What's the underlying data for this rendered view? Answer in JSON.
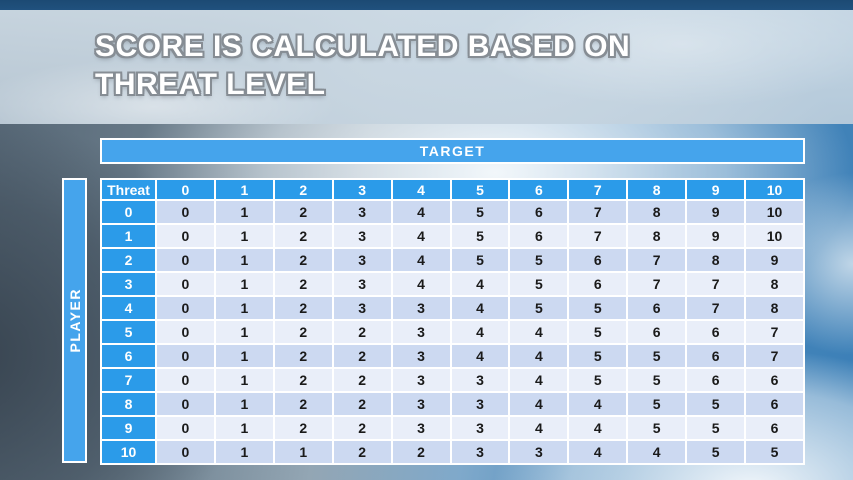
{
  "title": {
    "line1": "SCORE IS CALCULATED BASED ON",
    "line2": "THREAT LEVEL"
  },
  "matrix": {
    "column_axis_label": "TARGET",
    "row_axis_label": "PLAYER",
    "corner_header": "Threat",
    "target_levels": [
      0,
      1,
      2,
      3,
      4,
      5,
      6,
      7,
      8,
      9,
      10
    ],
    "rows": [
      {
        "threat": 0,
        "scores": [
          0,
          1,
          2,
          3,
          4,
          5,
          6,
          7,
          8,
          9,
          10
        ]
      },
      {
        "threat": 1,
        "scores": [
          0,
          1,
          2,
          3,
          4,
          5,
          6,
          7,
          8,
          9,
          10
        ]
      },
      {
        "threat": 2,
        "scores": [
          0,
          1,
          2,
          3,
          4,
          5,
          5,
          6,
          7,
          8,
          9
        ]
      },
      {
        "threat": 3,
        "scores": [
          0,
          1,
          2,
          3,
          4,
          4,
          5,
          6,
          7,
          7,
          8
        ]
      },
      {
        "threat": 4,
        "scores": [
          0,
          1,
          2,
          3,
          3,
          4,
          5,
          5,
          6,
          7,
          8
        ]
      },
      {
        "threat": 5,
        "scores": [
          0,
          1,
          2,
          2,
          3,
          4,
          4,
          5,
          6,
          6,
          7
        ]
      },
      {
        "threat": 6,
        "scores": [
          0,
          1,
          2,
          2,
          3,
          4,
          4,
          5,
          5,
          6,
          7
        ]
      },
      {
        "threat": 7,
        "scores": [
          0,
          1,
          2,
          2,
          3,
          3,
          4,
          5,
          5,
          6,
          6
        ]
      },
      {
        "threat": 8,
        "scores": [
          0,
          1,
          2,
          2,
          3,
          3,
          4,
          4,
          5,
          5,
          6
        ]
      },
      {
        "threat": 9,
        "scores": [
          0,
          1,
          2,
          2,
          3,
          3,
          4,
          4,
          5,
          5,
          6
        ]
      },
      {
        "threat": 10,
        "scores": [
          0,
          1,
          1,
          2,
          2,
          3,
          3,
          4,
          4,
          5,
          5
        ]
      }
    ]
  },
  "colors": {
    "header_blue": "#2b9be9",
    "bar_blue": "#45a4ec",
    "row_even": "#ccd9f1",
    "row_odd": "#e9eef9",
    "cell_text": "#1a1a1a",
    "separator_white": "#ffffff",
    "title_text": "#ffffff",
    "title_outline": "#868d94"
  }
}
